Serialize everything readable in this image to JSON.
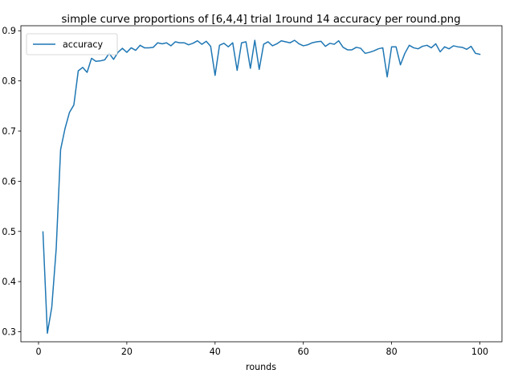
{
  "chart_data": {
    "type": "line",
    "title": "simple curve proportions of [6,4,4] trial 1round 14 accuracy per round.png",
    "xlabel": "rounds",
    "ylabel": "",
    "xlim": [
      -4,
      105
    ],
    "ylim": [
      0.28,
      0.91
    ],
    "xticks": [
      0,
      20,
      40,
      60,
      80,
      100
    ],
    "yticks": [
      0.3,
      0.4,
      0.5,
      0.6,
      0.7,
      0.8,
      0.9
    ],
    "grid": false,
    "legend": {
      "position": "upper-left"
    },
    "colors": {
      "accuracy": "#1f77b4"
    },
    "series": [
      {
        "name": "accuracy",
        "x": [
          1,
          2,
          3,
          4,
          5,
          6,
          7,
          8,
          9,
          10,
          11,
          12,
          13,
          14,
          15,
          16,
          17,
          18,
          19,
          20,
          21,
          22,
          23,
          24,
          25,
          26,
          27,
          28,
          29,
          30,
          31,
          32,
          33,
          34,
          35,
          36,
          37,
          38,
          39,
          40,
          41,
          42,
          43,
          44,
          45,
          46,
          47,
          48,
          49,
          50,
          51,
          52,
          53,
          54,
          55,
          56,
          57,
          58,
          59,
          60,
          61,
          62,
          63,
          64,
          65,
          66,
          67,
          68,
          69,
          70,
          71,
          72,
          73,
          74,
          75,
          76,
          77,
          78,
          79,
          80,
          81,
          82,
          83,
          84,
          85,
          86,
          87,
          88,
          89,
          90,
          91,
          92,
          93,
          94,
          95,
          96,
          97,
          98,
          99,
          100
        ],
        "values": [
          0.499,
          0.297,
          0.349,
          0.465,
          0.663,
          0.705,
          0.737,
          0.752,
          0.82,
          0.827,
          0.817,
          0.845,
          0.839,
          0.84,
          0.842,
          0.855,
          0.843,
          0.857,
          0.865,
          0.857,
          0.866,
          0.861,
          0.871,
          0.866,
          0.866,
          0.867,
          0.876,
          0.874,
          0.876,
          0.87,
          0.878,
          0.876,
          0.876,
          0.872,
          0.875,
          0.88,
          0.873,
          0.879,
          0.869,
          0.811,
          0.871,
          0.875,
          0.868,
          0.876,
          0.821,
          0.876,
          0.878,
          0.825,
          0.881,
          0.823,
          0.873,
          0.878,
          0.87,
          0.874,
          0.88,
          0.878,
          0.876,
          0.881,
          0.874,
          0.87,
          0.872,
          0.876,
          0.878,
          0.879,
          0.869,
          0.875,
          0.873,
          0.88,
          0.867,
          0.862,
          0.862,
          0.867,
          0.865,
          0.855,
          0.857,
          0.86,
          0.864,
          0.866,
          0.808,
          0.868,
          0.868,
          0.832,
          0.855,
          0.871,
          0.866,
          0.864,
          0.869,
          0.871,
          0.866,
          0.874,
          0.858,
          0.868,
          0.864,
          0.87,
          0.868,
          0.867,
          0.863,
          0.869,
          0.855,
          0.853
        ]
      }
    ]
  }
}
